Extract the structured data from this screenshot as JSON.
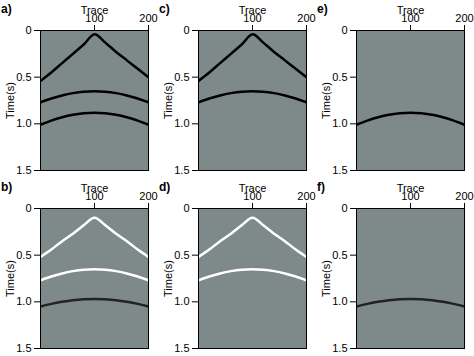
{
  "chart_data": [
    {
      "type": "line",
      "title": "a)",
      "x_label": "Trace",
      "y_label": "Time(s)",
      "xlim": [
        0,
        200
      ],
      "xticks": [
        100,
        200
      ],
      "ylim": [
        0,
        1.5
      ],
      "yticks": [
        0,
        0.5,
        {
          "value": 1,
          "label": "1.0"
        },
        1.5
      ],
      "x": [
        0,
        20,
        40,
        60,
        80,
        100,
        120,
        140,
        160,
        180,
        200
      ],
      "series": [
        {
          "color": "#000000",
          "values": [
            0.54,
            0.45,
            0.35,
            0.25,
            0.15,
            0.04,
            0.13,
            0.23,
            0.32,
            0.41,
            0.5
          ]
        },
        {
          "color": "#000000",
          "values": [
            0.77,
            0.729,
            0.696,
            0.671,
            0.655,
            0.65,
            0.655,
            0.671,
            0.696,
            0.729,
            0.77
          ]
        },
        {
          "color": "#000000",
          "values": [
            1.01,
            0.965,
            0.929,
            0.902,
            0.886,
            0.88,
            0.886,
            0.902,
            0.929,
            0.965,
            1.01
          ]
        }
      ]
    },
    {
      "type": "line",
      "title": "c)",
      "x_label": "Trace",
      "y_label": "Time(s)",
      "xlim": [
        0,
        200
      ],
      "xticks": [
        100,
        200
      ],
      "ylim": [
        0,
        1.5
      ],
      "yticks": [
        0,
        0.5,
        {
          "value": 1,
          "label": "1.0"
        },
        1.5
      ],
      "x": [
        0,
        20,
        40,
        60,
        80,
        100,
        120,
        140,
        160,
        180,
        200
      ],
      "series": [
        {
          "color": "#000000",
          "values": [
            0.54,
            0.45,
            0.35,
            0.25,
            0.15,
            0.04,
            0.13,
            0.23,
            0.32,
            0.41,
            0.5
          ]
        },
        {
          "color": "#000000",
          "values": [
            0.77,
            0.729,
            0.696,
            0.671,
            0.655,
            0.65,
            0.655,
            0.671,
            0.696,
            0.729,
            0.77
          ]
        }
      ]
    },
    {
      "type": "line",
      "title": "e)",
      "x_label": "Trace",
      "y_label": "Time(s)",
      "xlim": [
        0,
        200
      ],
      "xticks": [
        100,
        200
      ],
      "ylim": [
        0,
        1.5
      ],
      "yticks": [
        0,
        0.5,
        {
          "value": 1,
          "label": "1.0"
        },
        1.5
      ],
      "x": [
        0,
        20,
        40,
        60,
        80,
        100,
        120,
        140,
        160,
        180,
        200
      ],
      "series": [
        {
          "color": "#000000",
          "values": [
            1.01,
            0.965,
            0.929,
            0.902,
            0.886,
            0.88,
            0.886,
            0.902,
            0.929,
            0.965,
            1.01
          ]
        }
      ]
    },
    {
      "type": "line",
      "title": "b)",
      "x_label": "Trace",
      "y_label": "Time(s)",
      "xlim": [
        0,
        200
      ],
      "xticks": [
        100,
        200
      ],
      "ylim": [
        0,
        1.5
      ],
      "yticks": [
        0,
        0.5,
        {
          "value": 1,
          "label": "1.0"
        },
        1.5
      ],
      "x": [
        0,
        20,
        40,
        60,
        80,
        100,
        120,
        140,
        160,
        180,
        200
      ],
      "series": [
        {
          "color": "#ffffff",
          "values": [
            0.52,
            0.44,
            0.35,
            0.27,
            0.18,
            0.1,
            0.18,
            0.27,
            0.35,
            0.44,
            0.52
          ]
        },
        {
          "color": "#ffffff",
          "values": [
            0.77,
            0.729,
            0.696,
            0.671,
            0.655,
            0.65,
            0.655,
            0.671,
            0.696,
            0.729,
            0.77
          ]
        },
        {
          "color": "#222222",
          "values": [
            1.05,
            1.022,
            1.0,
            0.983,
            0.973,
            0.97,
            0.973,
            0.983,
            1.0,
            1.022,
            1.05
          ]
        }
      ]
    },
    {
      "type": "line",
      "title": "d)",
      "x_label": "Trace",
      "y_label": "Time(s)",
      "xlim": [
        0,
        200
      ],
      "xticks": [
        100,
        200
      ],
      "ylim": [
        0,
        1.5
      ],
      "yticks": [
        0,
        0.5,
        {
          "value": 1,
          "label": "1.0"
        },
        1.5
      ],
      "x": [
        0,
        20,
        40,
        60,
        80,
        100,
        120,
        140,
        160,
        180,
        200
      ],
      "series": [
        {
          "color": "#ffffff",
          "values": [
            0.52,
            0.44,
            0.35,
            0.27,
            0.18,
            0.1,
            0.18,
            0.27,
            0.35,
            0.44,
            0.52
          ]
        },
        {
          "color": "#ffffff",
          "values": [
            0.77,
            0.729,
            0.696,
            0.671,
            0.655,
            0.65,
            0.655,
            0.671,
            0.696,
            0.729,
            0.77
          ]
        }
      ]
    },
    {
      "type": "line",
      "title": "f)",
      "x_label": "Trace",
      "y_label": "Time(s)",
      "xlim": [
        0,
        200
      ],
      "xticks": [
        100,
        200
      ],
      "ylim": [
        0,
        1.5
      ],
      "yticks": [
        0,
        0.5,
        {
          "value": 1,
          "label": "1.0"
        },
        1.5
      ],
      "x": [
        0,
        20,
        40,
        60,
        80,
        100,
        120,
        140,
        160,
        180,
        200
      ],
      "series": [
        {
          "color": "#222222",
          "values": [
            1.05,
            1.022,
            1.0,
            0.983,
            0.973,
            0.97,
            0.973,
            0.983,
            1.0,
            1.022,
            1.05
          ]
        }
      ]
    }
  ]
}
